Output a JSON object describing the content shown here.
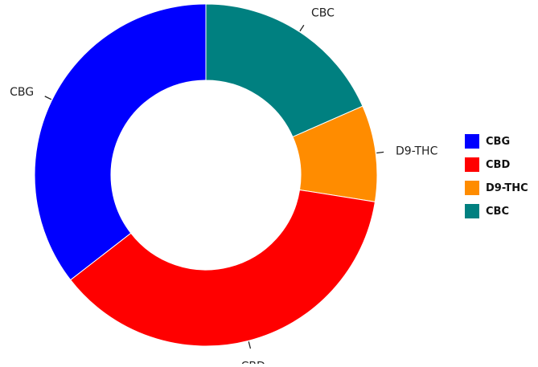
{
  "chart_data": {
    "type": "pie",
    "title": "",
    "donut": true,
    "categories": [
      "CBG",
      "CBD",
      "D9-THC",
      "CBC"
    ],
    "values": [
      35.5,
      37.0,
      9.1,
      18.4
    ],
    "unit": "",
    "colors": {
      "CBG": "#0000ff",
      "CBD": "#ff0000",
      "D9-THC": "#ff8c00",
      "CBC": "#008080"
    },
    "legend_position": "right",
    "legend": [
      "CBG",
      "CBD",
      "D9-THC",
      "CBC"
    ]
  }
}
